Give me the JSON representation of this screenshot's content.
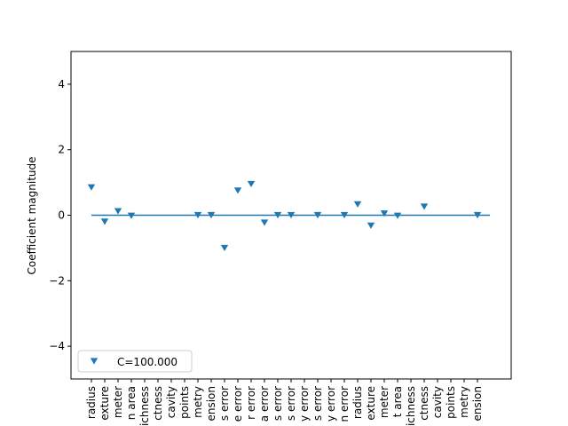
{
  "chart_data": {
    "type": "scatter",
    "title": "",
    "xlabel": "",
    "ylabel": "Coefficient magnitude",
    "ylim": [
      -5,
      5
    ],
    "yticks": [
      -4,
      -2,
      0,
      2,
      4
    ],
    "ytick_labels": [
      "−4",
      "−2",
      "0",
      "2",
      "4"
    ],
    "grid": false,
    "legend_position": "lower-left",
    "colors": {
      "series": "#1f77b4",
      "axes": "#000000",
      "background": "#ffffff"
    },
    "marker": "triangle-down",
    "categories": [
      "mean radius",
      "mean texture",
      "mean perimeter",
      "mean area",
      "mean smoothness",
      "mean compactness",
      "mean concavity",
      "mean concave points",
      "mean symmetry",
      "mean fractal dimension",
      "radius error",
      "texture error",
      "perimeter error",
      "area error",
      "smoothness error",
      "compactness error",
      "concavity error",
      "concave points error",
      "symmetry error",
      "fractal dimension error",
      "worst radius",
      "worst texture",
      "worst perimeter",
      "worst area",
      "worst smoothness",
      "worst compactness",
      "worst concavity",
      "worst concave points",
      "worst symmetry",
      "worst fractal dimension"
    ],
    "visible_tick_text": [
      "radius",
      "exture",
      "meter",
      "n area",
      "ichness",
      "ctness",
      "cavity",
      "points",
      "metry",
      "ension",
      "s error",
      "e error",
      "r error",
      "a error",
      "s error",
      "s error",
      "y error",
      "s error",
      "y error",
      "n error",
      "radius",
      "exture",
      "meter",
      "t area",
      "ichness",
      "ctness",
      "cavity",
      "points",
      "metry",
      "ension"
    ],
    "series": [
      {
        "name": "C=100.000",
        "values": [
          0.85,
          -0.2,
          0.12,
          -0.02,
          null,
          null,
          null,
          null,
          0.0,
          0.0,
          -1.0,
          0.75,
          0.95,
          -0.23,
          0.0,
          0.0,
          null,
          0.0,
          null,
          0.0,
          0.33,
          -0.32,
          0.05,
          -0.02,
          null,
          0.26,
          null,
          null,
          null,
          0.0
        ]
      }
    ],
    "reference_line": {
      "y": 0,
      "from_index": 0,
      "to_index": 30
    }
  }
}
